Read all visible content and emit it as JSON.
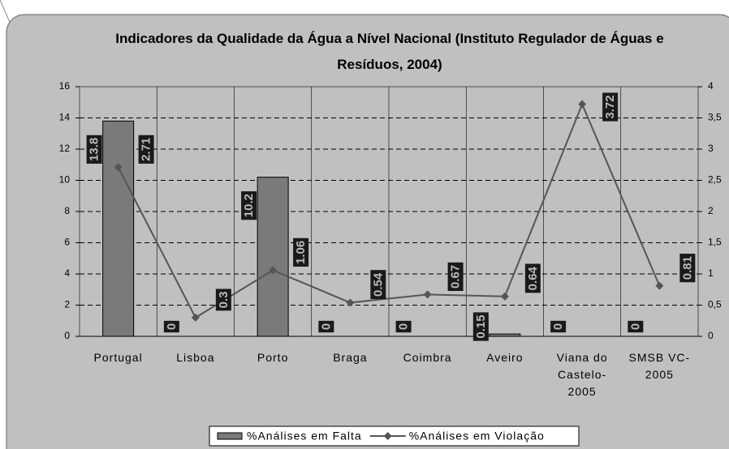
{
  "chart_data": {
    "type": "bar_line",
    "title": "Indicadores da Qualidade da Água a Nível Nacional (Instituto Regulador de Águas e Resíduos, 2004)",
    "categories": [
      "Portugal",
      "Lisboa",
      "Porto",
      "Braga",
      "Coimbra",
      "Aveiro",
      "Viana do Castelo-2005",
      "SMSB VC-2005"
    ],
    "series": [
      {
        "name": "%Análises em Falta",
        "type": "bar",
        "color": "#7a7a7a",
        "values": [
          13.8,
          0,
          10.2,
          0,
          0,
          0.15,
          0,
          0
        ]
      },
      {
        "name": "%Análises em Violação",
        "type": "line",
        "axis": "y2",
        "color": "#555555",
        "values": [
          2.71,
          0.3,
          1.06,
          0.54,
          0.67,
          0.64,
          3.72,
          0.81
        ]
      }
    ],
    "ylim": [
      0,
      16
    ],
    "yticks": [
      0,
      2,
      4,
      6,
      8,
      10,
      12,
      14,
      16
    ],
    "y2lim": [
      0,
      4
    ],
    "y2ticks": [
      0,
      {
        "value": 0.5,
        "label": "0,5"
      },
      1,
      {
        "value": 1.5,
        "label": "1,5"
      },
      2,
      {
        "value": 2.5,
        "label": "2,5"
      },
      3,
      {
        "value": 3.5,
        "label": "3,5"
      },
      4
    ],
    "grid": true,
    "legend": "bottom"
  }
}
